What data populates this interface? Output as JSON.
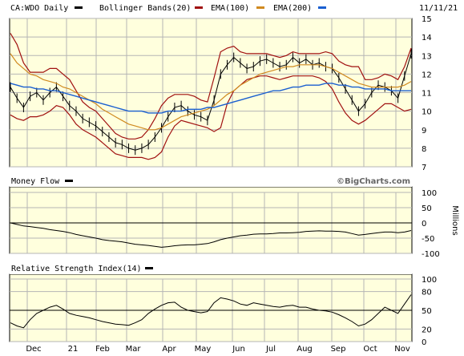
{
  "header": {
    "symbol": "CA:WDO Daily",
    "bollinger_label": "Bollinger Bands(20)",
    "ema100_label": "EMA(100)",
    "ema200_label": "EMA(200)",
    "date": "11/11/21"
  },
  "credit": "©BigCharts.com",
  "colors": {
    "price": "#000000",
    "bollinger": "#a01010",
    "ema100": "#d08a20",
    "ema200": "#1a5fd0",
    "panel_bg": "#ffffdd",
    "grid": "#b5b5b5"
  },
  "chart_data": [
    {
      "type": "line",
      "title": "CA:WDO Daily",
      "x_labels": [
        "Dec",
        "21",
        "Feb",
        "Mar",
        "Apr",
        "May",
        "Jun",
        "Jul",
        "Aug",
        "Sep",
        "Oct",
        "Nov"
      ],
      "y_ticks": [
        7,
        8,
        9,
        10,
        11,
        12,
        13,
        14,
        15
      ],
      "ylim": [
        7,
        15
      ],
      "legend": [
        "CA:WDO Daily",
        "Bollinger Bands(20)",
        "EMA(100)",
        "EMA(200)"
      ],
      "series": [
        {
          "name": "CA:WDO Daily",
          "values": [
            11.3,
            10.7,
            10.2,
            10.8,
            11.0,
            10.6,
            11.0,
            11.3,
            10.8,
            10.3,
            10.0,
            9.6,
            9.4,
            9.2,
            8.9,
            8.6,
            8.3,
            8.2,
            8.0,
            7.9,
            8.0,
            8.2,
            8.6,
            9.1,
            9.7,
            10.2,
            10.3,
            10.0,
            9.8,
            9.7,
            9.5,
            10.6,
            12.0,
            12.5,
            12.9,
            12.6,
            12.3,
            12.4,
            12.7,
            12.8,
            12.6,
            12.4,
            12.5,
            12.9,
            12.6,
            12.8,
            12.5,
            12.6,
            12.4,
            12.3,
            11.8,
            11.2,
            10.6,
            10.0,
            10.4,
            11.0,
            11.4,
            11.3,
            11.1,
            10.7,
            11.9,
            13.1
          ]
        },
        {
          "name": "Bollinger Bands(20) upper",
          "values": [
            14.2,
            13.6,
            12.6,
            12.1,
            12.1,
            12.1,
            12.3,
            12.3,
            12.0,
            11.7,
            11.1,
            10.5,
            10.2,
            10.0,
            9.6,
            9.2,
            8.8,
            8.6,
            8.5,
            8.5,
            8.6,
            9.0,
            9.6,
            10.3,
            10.7,
            10.9,
            10.9,
            10.9,
            10.8,
            10.6,
            10.5,
            11.8,
            13.2,
            13.4,
            13.5,
            13.2,
            13.1,
            13.1,
            13.1,
            13.1,
            13.0,
            12.9,
            13.0,
            13.2,
            13.1,
            13.1,
            13.1,
            13.1,
            13.2,
            13.1,
            12.7,
            12.5,
            12.4,
            12.4,
            11.7,
            11.7,
            11.8,
            12.0,
            11.9,
            11.7,
            12.4,
            13.4
          ]
        },
        {
          "name": "Bollinger Bands(20) lower",
          "values": [
            9.8,
            9.6,
            9.5,
            9.7,
            9.7,
            9.8,
            10.0,
            10.3,
            10.2,
            9.8,
            9.3,
            9.0,
            8.8,
            8.6,
            8.3,
            8.0,
            7.7,
            7.6,
            7.5,
            7.5,
            7.5,
            7.4,
            7.5,
            7.8,
            8.6,
            9.2,
            9.5,
            9.4,
            9.3,
            9.2,
            9.1,
            8.9,
            9.1,
            10.4,
            11.1,
            11.4,
            11.7,
            11.8,
            11.9,
            11.9,
            11.8,
            11.7,
            11.8,
            11.9,
            11.9,
            11.9,
            11.9,
            11.8,
            11.6,
            11.2,
            10.5,
            9.9,
            9.5,
            9.3,
            9.5,
            9.8,
            10.1,
            10.4,
            10.4,
            10.2,
            10.0,
            10.1
          ]
        },
        {
          "name": "EMA(100)",
          "values": [
            13.1,
            12.6,
            12.3,
            12.0,
            11.9,
            11.7,
            11.6,
            11.5,
            11.3,
            11.2,
            11.0,
            10.8,
            10.6,
            10.4,
            10.1,
            9.9,
            9.7,
            9.5,
            9.3,
            9.2,
            9.1,
            9.0,
            9.0,
            9.1,
            9.3,
            9.5,
            9.7,
            9.8,
            9.9,
            10.0,
            10.1,
            10.3,
            10.6,
            10.9,
            11.1,
            11.4,
            11.6,
            11.8,
            12.0,
            12.1,
            12.2,
            12.3,
            12.4,
            12.4,
            12.5,
            12.5,
            12.5,
            12.5,
            12.4,
            12.3,
            12.1,
            11.9,
            11.7,
            11.5,
            11.4,
            11.3,
            11.3,
            11.3,
            11.3,
            11.3,
            11.4,
            11.6
          ]
        },
        {
          "name": "EMA(200)",
          "values": [
            11.5,
            11.4,
            11.3,
            11.3,
            11.2,
            11.2,
            11.1,
            11.1,
            11.0,
            10.9,
            10.8,
            10.7,
            10.6,
            10.5,
            10.4,
            10.3,
            10.2,
            10.1,
            10.0,
            10.0,
            10.0,
            9.9,
            9.9,
            9.9,
            10.0,
            10.0,
            10.0,
            10.1,
            10.1,
            10.1,
            10.2,
            10.2,
            10.3,
            10.4,
            10.5,
            10.6,
            10.7,
            10.8,
            10.9,
            11.0,
            11.1,
            11.1,
            11.2,
            11.3,
            11.3,
            11.4,
            11.4,
            11.4,
            11.5,
            11.5,
            11.4,
            11.4,
            11.3,
            11.3,
            11.2,
            11.2,
            11.2,
            11.2,
            11.1,
            11.1,
            11.1,
            11.1
          ]
        }
      ]
    },
    {
      "type": "line",
      "title": "Money Flow",
      "y_ticks": [
        100,
        50,
        0,
        -50,
        -100
      ],
      "ylim": [
        -100,
        100
      ],
      "ylabel": "Millions",
      "series": [
        {
          "name": "Money Flow",
          "values": [
            0,
            -5,
            -10,
            -12,
            -15,
            -18,
            -22,
            -25,
            -28,
            -32,
            -38,
            -42,
            -46,
            -50,
            -55,
            -58,
            -60,
            -62,
            -66,
            -70,
            -72,
            -74,
            -77,
            -80,
            -78,
            -75,
            -73,
            -72,
            -72,
            -70,
            -68,
            -62,
            -55,
            -50,
            -46,
            -42,
            -40,
            -37,
            -36,
            -36,
            -35,
            -33,
            -33,
            -32,
            -31,
            -28,
            -27,
            -26,
            -27,
            -27,
            -28,
            -30,
            -35,
            -40,
            -38,
            -35,
            -32,
            -30,
            -30,
            -32,
            -30,
            -25
          ]
        }
      ]
    },
    {
      "type": "line",
      "title": "Relative Strength Index(14)",
      "y_ticks": [
        100,
        80,
        50,
        20,
        0
      ],
      "ylim": [
        0,
        100
      ],
      "series": [
        {
          "name": "Relative Strength Index(14)",
          "values": [
            30,
            25,
            22,
            35,
            45,
            50,
            55,
            58,
            52,
            45,
            42,
            40,
            38,
            35,
            32,
            30,
            28,
            27,
            26,
            30,
            35,
            45,
            52,
            58,
            62,
            63,
            55,
            50,
            48,
            46,
            48,
            62,
            70,
            68,
            65,
            60,
            58,
            62,
            60,
            58,
            56,
            55,
            57,
            58,
            55,
            55,
            52,
            50,
            49,
            47,
            43,
            38,
            32,
            25,
            28,
            35,
            45,
            55,
            50,
            45,
            60,
            75
          ]
        }
      ]
    }
  ]
}
